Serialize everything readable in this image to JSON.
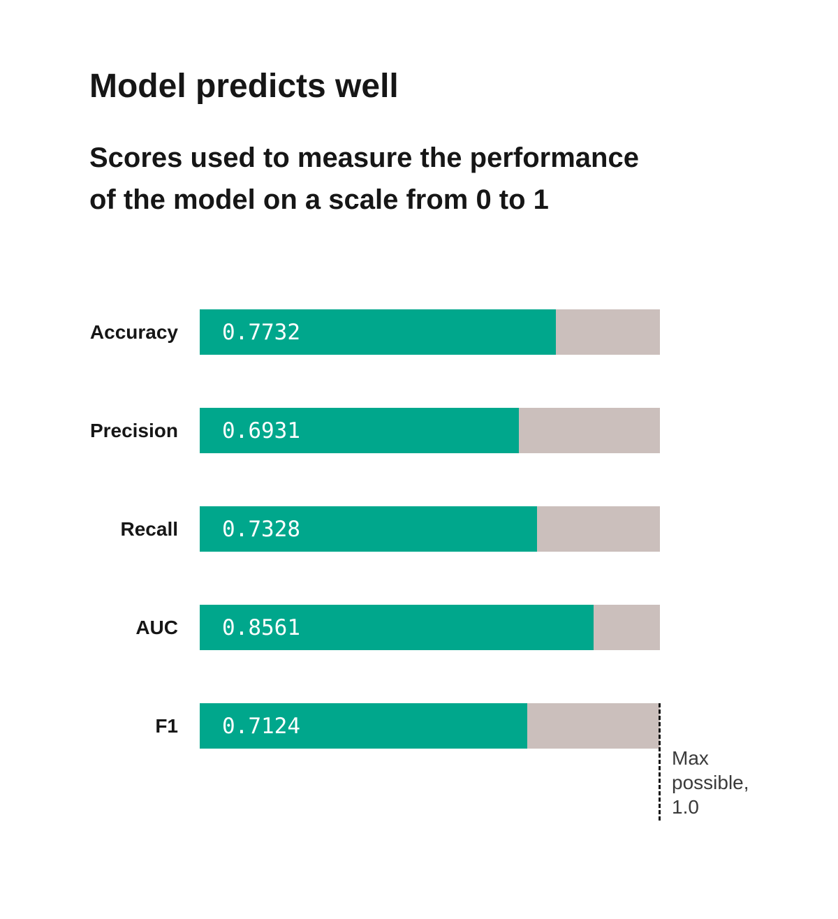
{
  "title": "Model predicts well",
  "subtitle_lines": [
    "Scores used to measure the performance",
    "of the model on a scale from 0 to 1"
  ],
  "annotation_lines": [
    "Max",
    "possible,",
    "1.0"
  ],
  "chart_data": {
    "type": "bar",
    "orientation": "horizontal",
    "title": "Model predicts well",
    "subtitle": "Scores used to measure the performance of the model on a scale from 0 to 1",
    "categories": [
      "Accuracy",
      "Precision",
      "Recall",
      "AUC",
      "F1"
    ],
    "values": [
      0.7732,
      0.6931,
      0.7328,
      0.8561,
      0.7124
    ],
    "value_labels": [
      "0.7732",
      "0.6931",
      "0.7328",
      "0.8561",
      "0.7124"
    ],
    "xlim": [
      0,
      1
    ],
    "grid": false,
    "legend": false,
    "annotation": "Max possible, 1.0",
    "annotation_value": 1.0,
    "colors": {
      "bar": "#00a78c",
      "track": "#cbbfbc",
      "text": "#161616",
      "value_text": "#ffffff",
      "annotation_line": "#161616"
    }
  }
}
